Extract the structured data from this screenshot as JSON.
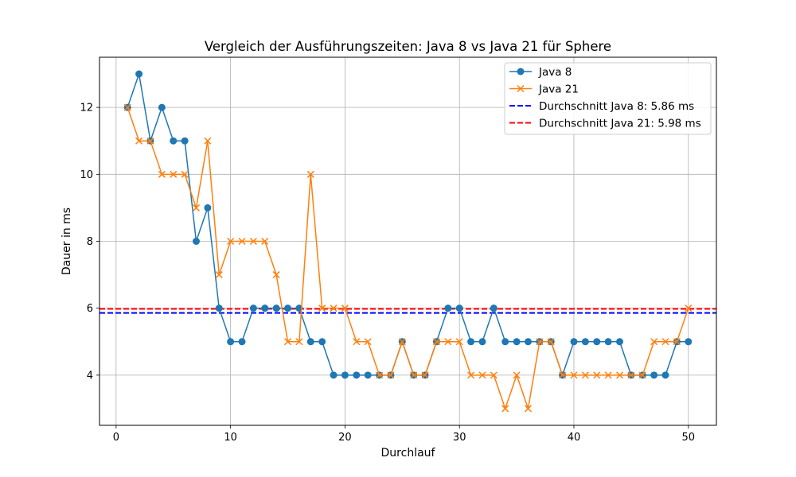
{
  "chart_data": {
    "type": "line",
    "title": "Vergleich der Ausführungszeiten: Java 8 vs Java 21 für Sphere",
    "xlabel": "Durchlauf",
    "ylabel": "Dauer in ms",
    "xlim": [
      -1.45,
      52.45
    ],
    "ylim": [
      2.5,
      13.5
    ],
    "xticks": [
      0,
      10,
      20,
      30,
      40,
      50
    ],
    "yticks": [
      4,
      6,
      8,
      10,
      12
    ],
    "grid": true,
    "legend_position": "top-right",
    "x": [
      1,
      2,
      3,
      4,
      5,
      6,
      7,
      8,
      9,
      10,
      11,
      12,
      13,
      14,
      15,
      16,
      17,
      18,
      19,
      20,
      21,
      22,
      23,
      24,
      25,
      26,
      27,
      28,
      29,
      30,
      31,
      32,
      33,
      34,
      35,
      36,
      37,
      38,
      39,
      40,
      41,
      42,
      43,
      44,
      45,
      46,
      47,
      48,
      49,
      50
    ],
    "series": [
      {
        "name": "Java 8",
        "color": "#1f77b4",
        "marker": "circle",
        "values": [
          12,
          13,
          11,
          12,
          11,
          11,
          8,
          9,
          6,
          5,
          5,
          6,
          6,
          6,
          6,
          6,
          5,
          5,
          4,
          4,
          4,
          4,
          4,
          4,
          5,
          4,
          4,
          5,
          6,
          6,
          5,
          5,
          6,
          5,
          5,
          5,
          5,
          5,
          4,
          5,
          5,
          5,
          5,
          5,
          4,
          4,
          4,
          4,
          5,
          5
        ]
      },
      {
        "name": "Java 21",
        "color": "#ff7f0e",
        "marker": "x",
        "values": [
          12,
          11,
          11,
          10,
          10,
          10,
          9,
          11,
          7,
          8,
          8,
          8,
          8,
          7,
          5,
          5,
          10,
          6,
          6,
          6,
          5,
          5,
          4,
          4,
          5,
          4,
          4,
          5,
          5,
          5,
          4,
          4,
          4,
          3,
          4,
          3,
          5,
          5,
          4,
          4,
          4,
          4,
          4,
          4,
          4,
          4,
          5,
          5,
          5,
          6
        ]
      }
    ],
    "reference_lines": [
      {
        "name": "Durchschnitt Java 8: 5.86 ms",
        "value": 5.86,
        "color": "#0000ff",
        "style": "dashed"
      },
      {
        "name": "Durchschnitt Java 21: 5.98 ms",
        "value": 5.98,
        "color": "#ff0000",
        "style": "dashed"
      }
    ]
  }
}
